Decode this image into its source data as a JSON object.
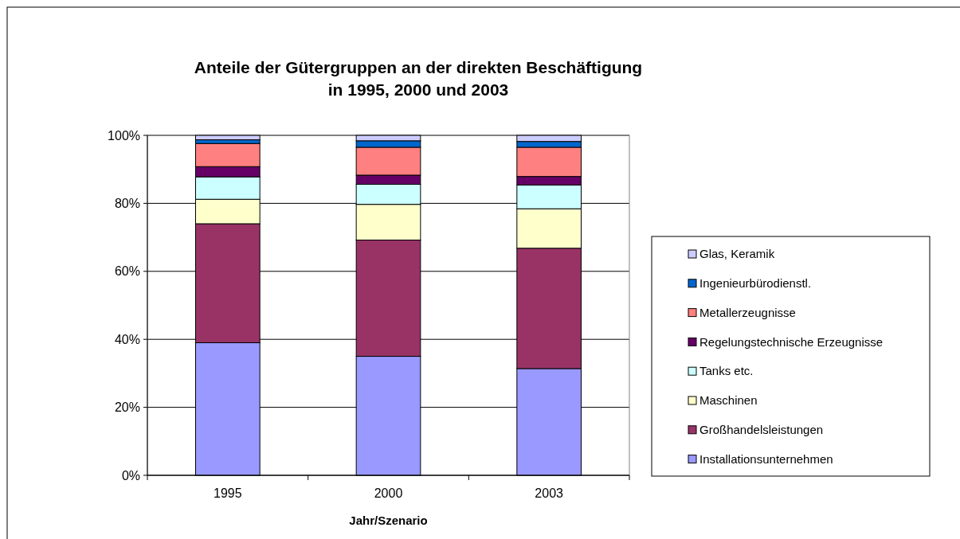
{
  "chart_data": {
    "type": "bar",
    "title": "Anteile der Gütergruppen an der direkten Beschäftigung\nin 1995, 2000 und 2003",
    "xlabel": "Jahr/Szenario",
    "categories": [
      "1995",
      "2000",
      "2003"
    ],
    "stacked": true,
    "ylim": [
      0,
      100
    ],
    "yticks": [
      {
        "value": 0,
        "label": "0%"
      },
      {
        "value": 20,
        "label": "20%"
      },
      {
        "value": 40,
        "label": "40%"
      },
      {
        "value": 60,
        "label": "60%"
      },
      {
        "value": 80,
        "label": "80%"
      },
      {
        "value": 100,
        "label": "100%"
      }
    ],
    "grid": "y",
    "legend": "right",
    "series": [
      {
        "name": "Installationsunternehmen",
        "color": "#9999ff",
        "values": [
          39,
          35,
          31.4
        ]
      },
      {
        "name": "Großhandelsleistungen",
        "color": "#993366",
        "values": [
          35,
          34.2,
          35.4
        ]
      },
      {
        "name": "Maschinen",
        "color": "#ffffcc",
        "values": [
          7.2,
          10.5,
          11.6
        ]
      },
      {
        "name": "Tanks etc.",
        "color": "#ccffff",
        "values": [
          6.6,
          5.9,
          7.0
        ]
      },
      {
        "name": "Regelungstechnische Erzeugnisse",
        "color": "#660066",
        "values": [
          3.0,
          2.7,
          2.5
        ]
      },
      {
        "name": "Metallerzeugnisse",
        "color": "#ff8080",
        "values": [
          6.8,
          8.2,
          8.6
        ]
      },
      {
        "name": "Ingenieurbürodienstl.",
        "color": "#0066cc",
        "values": [
          1.1,
          1.9,
          1.7
        ]
      },
      {
        "name": "Glas,  Keramik",
        "color": "#ccccff",
        "values": [
          1.3,
          1.6,
          1.8
        ]
      }
    ]
  }
}
